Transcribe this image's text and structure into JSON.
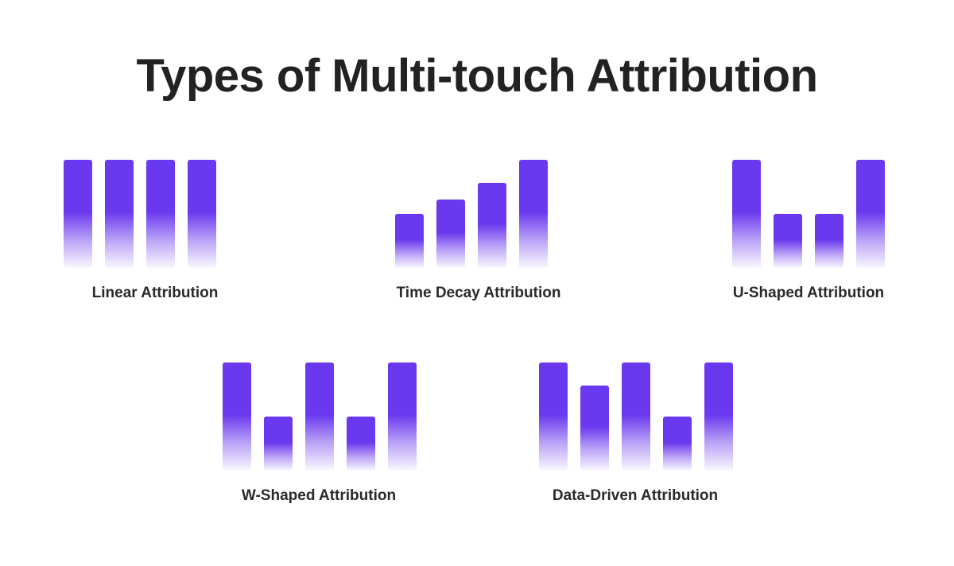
{
  "title": "Types of Multi-touch Attribution",
  "accent_color": "#6a38ee",
  "groups": [
    {
      "label": "Linear Attribution",
      "values": [
        1,
        1,
        1,
        1
      ]
    },
    {
      "label": "Time Decay Attribution",
      "values": [
        0.5,
        0.63,
        0.79,
        1
      ]
    },
    {
      "label": "U-Shaped Attribution",
      "values": [
        1,
        0.5,
        0.5,
        1
      ]
    },
    {
      "label": "W-Shaped Attribution",
      "values": [
        1,
        0.5,
        1,
        0.5,
        1
      ]
    },
    {
      "label": "Data-Driven Attribution",
      "values": [
        1,
        0.79,
        1,
        0.5,
        1
      ]
    }
  ]
}
